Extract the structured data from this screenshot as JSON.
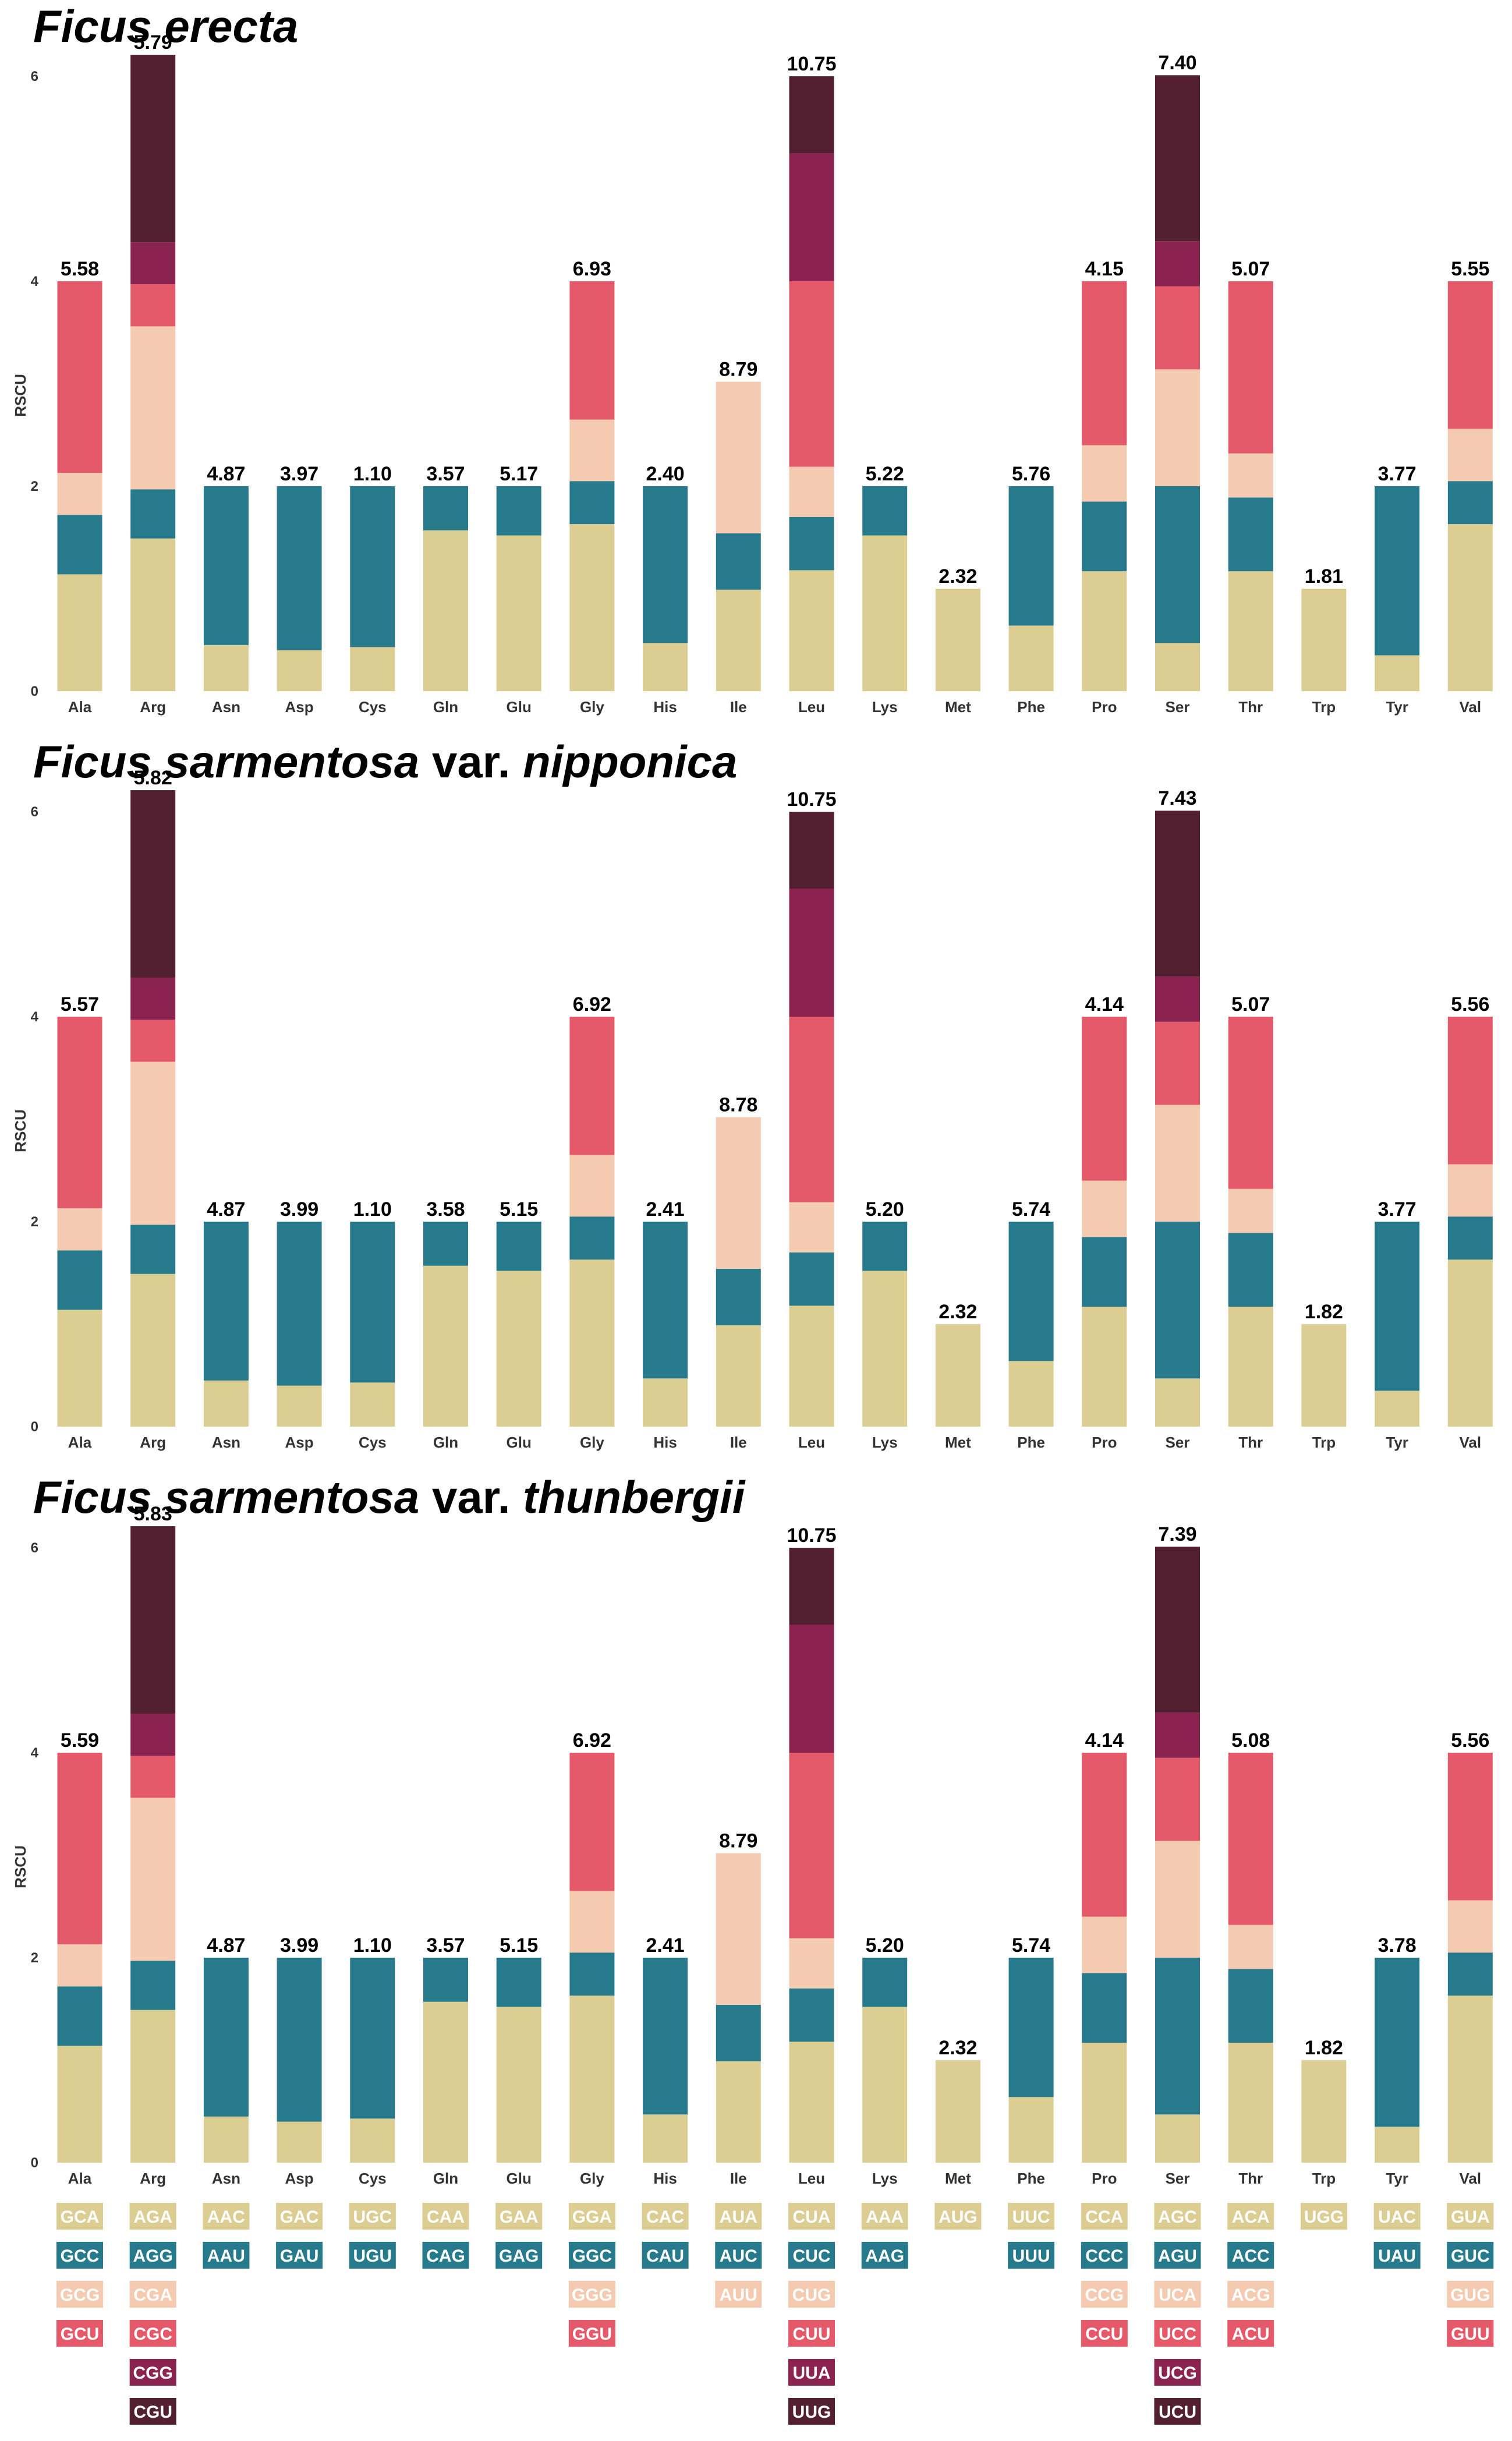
{
  "chart_data": {
    "type": "bar",
    "stacked": true,
    "ylabel": "RSCU",
    "yticks": [
      0,
      2,
      4,
      6
    ],
    "ylim": [
      0,
      6
    ],
    "categories": [
      "Ala",
      "Arg",
      "Asn",
      "Asp",
      "Cys",
      "Gln",
      "Glu",
      "Gly",
      "His",
      "Ile",
      "Leu",
      "Lys",
      "Met",
      "Phe",
      "Pro",
      "Ser",
      "Thr",
      "Trp",
      "Tyr",
      "Val"
    ],
    "colors": [
      "#dccd93",
      "#277a8c",
      "#f4cbb0",
      "#e55a6a",
      "#8b2350",
      "#532032"
    ],
    "codons": [
      [
        "GCA",
        "GCC",
        "GCG",
        "GCU"
      ],
      [
        "AGA",
        "AGG",
        "CGA",
        "CGC",
        "CGG",
        "CGU"
      ],
      [
        "AAC",
        "AAU"
      ],
      [
        "GAC",
        "GAU"
      ],
      [
        "UGC",
        "UGU"
      ],
      [
        "CAA",
        "CAG"
      ],
      [
        "GAA",
        "GAG"
      ],
      [
        "GGA",
        "GGC",
        "GGG",
        "GGU"
      ],
      [
        "CAC",
        "CAU"
      ],
      [
        "AUA",
        "AUC",
        "AUU"
      ],
      [
        "CUA",
        "CUC",
        "CUG",
        "CUU",
        "UUA",
        "UUG"
      ],
      [
        "AAA",
        "AAG"
      ],
      [
        "AUG"
      ],
      [
        "UUC",
        "UUU"
      ],
      [
        "CCA",
        "CCC",
        "CCG",
        "CCU"
      ],
      [
        "AGC",
        "AGU",
        "UCA",
        "UCC",
        "UCG",
        "UCU"
      ],
      [
        "ACA",
        "ACC",
        "ACG",
        "ACU"
      ],
      [
        "UGG"
      ],
      [
        "UAC",
        "UAU"
      ],
      [
        "GUA",
        "GUC",
        "GUG",
        "GUU"
      ]
    ],
    "panels": [
      {
        "title_genus": "Ficus erecta",
        "title_var": "",
        "title_epithet": "",
        "totals": [
          "5.58",
          "5.79",
          "4.87",
          "3.97",
          "1.10",
          "3.57",
          "5.17",
          "6.93",
          "2.40",
          "8.79",
          "10.75",
          "5.22",
          "2.32",
          "5.76",
          "4.15",
          "7.40",
          "5.07",
          "1.81",
          "3.77",
          "5.55"
        ],
        "segments": [
          [
            1.14,
            0.58,
            0.41,
            1.87
          ],
          [
            1.49,
            0.48,
            1.59,
            0.41,
            0.41,
            1.83
          ],
          [
            0.45,
            1.55
          ],
          [
            0.4,
            1.6
          ],
          [
            0.43,
            1.57
          ],
          [
            1.57,
            0.43
          ],
          [
            1.52,
            0.48
          ],
          [
            1.63,
            0.42,
            0.6,
            1.35
          ],
          [
            0.47,
            1.53
          ],
          [
            0.99,
            0.55,
            1.48
          ],
          [
            1.18,
            0.52,
            0.49,
            1.81,
            1.25,
            0.75
          ],
          [
            1.52,
            0.48
          ],
          [
            1.0
          ],
          [
            0.64,
            1.36
          ],
          [
            1.17,
            0.68,
            0.55,
            1.6
          ],
          [
            0.47,
            1.53,
            1.14,
            0.81,
            0.44,
            1.62
          ],
          [
            1.17,
            0.72,
            0.43,
            1.68
          ],
          [
            1.0
          ],
          [
            0.35,
            1.65
          ],
          [
            1.63,
            0.42,
            0.51,
            1.44
          ]
        ]
      },
      {
        "title_genus": "Ficus sarmentosa",
        "title_var": "var.",
        "title_epithet": "nipponica",
        "totals": [
          "5.57",
          "5.82",
          "4.87",
          "3.99",
          "1.10",
          "3.58",
          "5.15",
          "6.92",
          "2.41",
          "8.78",
          "10.75",
          "5.20",
          "2.32",
          "5.74",
          "4.14",
          "7.43",
          "5.07",
          "1.82",
          "3.77",
          "5.56"
        ],
        "segments": [
          [
            1.14,
            0.58,
            0.41,
            1.87
          ],
          [
            1.49,
            0.48,
            1.59,
            0.41,
            0.41,
            1.83
          ],
          [
            0.45,
            1.55
          ],
          [
            0.4,
            1.6
          ],
          [
            0.43,
            1.57
          ],
          [
            1.57,
            0.43
          ],
          [
            1.52,
            0.48
          ],
          [
            1.63,
            0.42,
            0.6,
            1.35
          ],
          [
            0.47,
            1.53
          ],
          [
            0.99,
            0.55,
            1.48
          ],
          [
            1.18,
            0.52,
            0.49,
            1.81,
            1.25,
            0.75
          ],
          [
            1.52,
            0.48
          ],
          [
            1.0
          ],
          [
            0.64,
            1.36
          ],
          [
            1.17,
            0.68,
            0.55,
            1.6
          ],
          [
            0.47,
            1.53,
            1.14,
            0.81,
            0.44,
            1.62
          ],
          [
            1.17,
            0.72,
            0.43,
            1.68
          ],
          [
            1.0
          ],
          [
            0.35,
            1.65
          ],
          [
            1.63,
            0.42,
            0.51,
            1.44
          ]
        ]
      },
      {
        "title_genus": "Ficus sarmentosa",
        "title_var": "var.",
        "title_epithet": "thunbergii",
        "totals": [
          "5.59",
          "5.83",
          "4.87",
          "3.99",
          "1.10",
          "3.57",
          "5.15",
          "6.92",
          "2.41",
          "8.79",
          "10.75",
          "5.20",
          "2.32",
          "5.74",
          "4.14",
          "7.39",
          "5.08",
          "1.82",
          "3.78",
          "5.56"
        ],
        "segments": [
          [
            1.14,
            0.58,
            0.41,
            1.87
          ],
          [
            1.49,
            0.48,
            1.59,
            0.41,
            0.41,
            1.83
          ],
          [
            0.45,
            1.55
          ],
          [
            0.4,
            1.6
          ],
          [
            0.43,
            1.57
          ],
          [
            1.57,
            0.43
          ],
          [
            1.52,
            0.48
          ],
          [
            1.63,
            0.42,
            0.6,
            1.35
          ],
          [
            0.47,
            1.53
          ],
          [
            0.99,
            0.55,
            1.48
          ],
          [
            1.18,
            0.52,
            0.49,
            1.81,
            1.25,
            0.75
          ],
          [
            1.52,
            0.48
          ],
          [
            1.0
          ],
          [
            0.64,
            1.36
          ],
          [
            1.17,
            0.68,
            0.55,
            1.6
          ],
          [
            0.47,
            1.53,
            1.14,
            0.81,
            0.44,
            1.62
          ],
          [
            1.17,
            0.72,
            0.43,
            1.68
          ],
          [
            1.0
          ],
          [
            0.35,
            1.65
          ],
          [
            1.63,
            0.42,
            0.51,
            1.44
          ]
        ]
      }
    ]
  }
}
